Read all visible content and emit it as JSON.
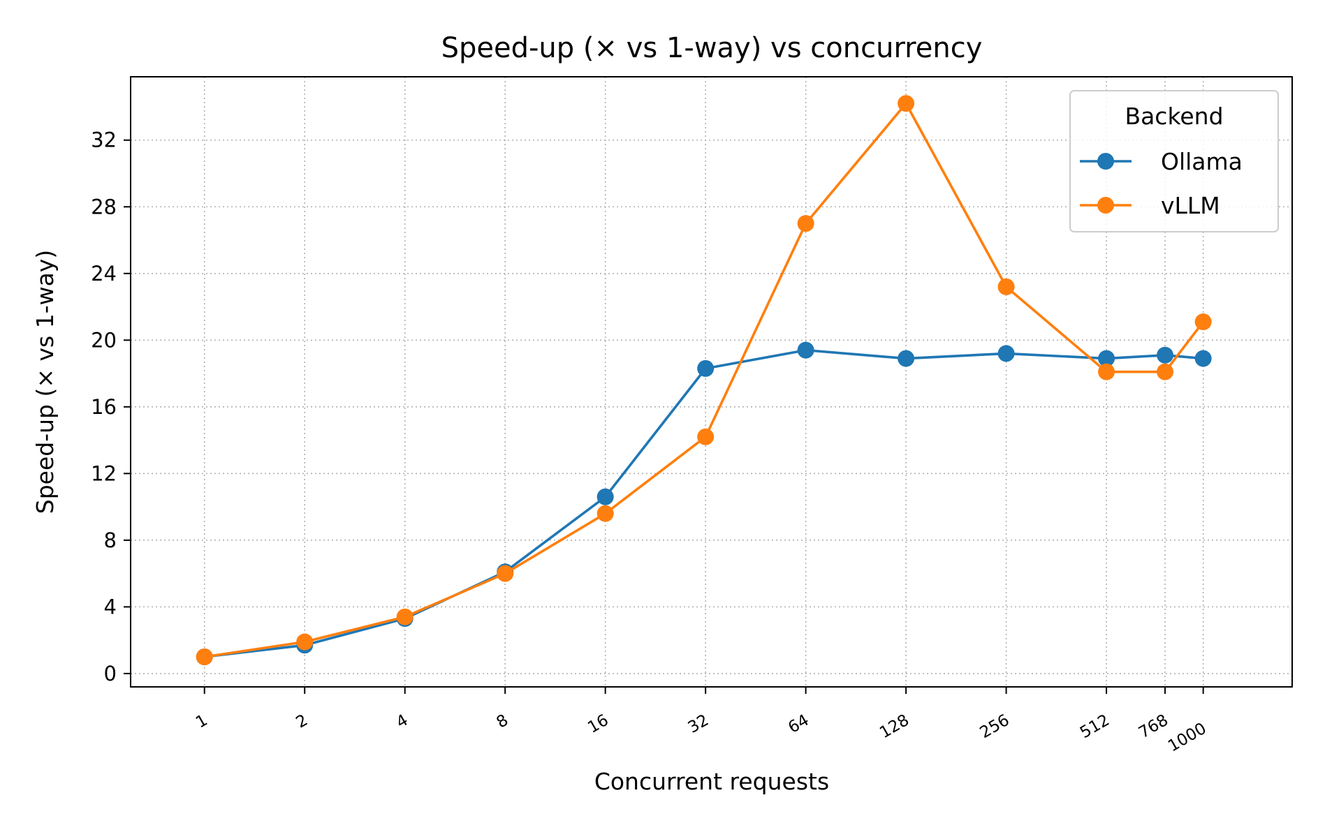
{
  "chart_data": {
    "type": "line",
    "title": "Speed-up (× vs 1-way) vs concurrency",
    "xlabel": "Concurrent requests",
    "ylabel": "Speed-up (× vs 1-way)",
    "x_scale": "log2",
    "categories": [
      "1",
      "2",
      "4",
      "8",
      "16",
      "32",
      "64",
      "128",
      "256",
      "512",
      "768",
      "1000"
    ],
    "x": [
      1,
      2,
      4,
      8,
      16,
      32,
      64,
      128,
      256,
      512,
      768,
      1000
    ],
    "yticks": [
      0,
      4,
      8,
      12,
      16,
      20,
      24,
      28,
      32
    ],
    "ylim": [
      -0.8,
      35.8
    ],
    "grid": true,
    "legend": {
      "title": "Backend",
      "placement": "top-right"
    },
    "series": [
      {
        "name": "Ollama",
        "color": "#1f77b4",
        "values": [
          1.0,
          1.7,
          3.3,
          6.1,
          10.6,
          18.3,
          19.4,
          18.9,
          19.2,
          18.9,
          19.1,
          18.9
        ]
      },
      {
        "name": "vLLM",
        "color": "#ff7f0e",
        "values": [
          1.0,
          1.9,
          3.4,
          6.0,
          9.6,
          14.2,
          27.0,
          34.2,
          23.2,
          18.1,
          18.1,
          21.1
        ]
      }
    ]
  }
}
